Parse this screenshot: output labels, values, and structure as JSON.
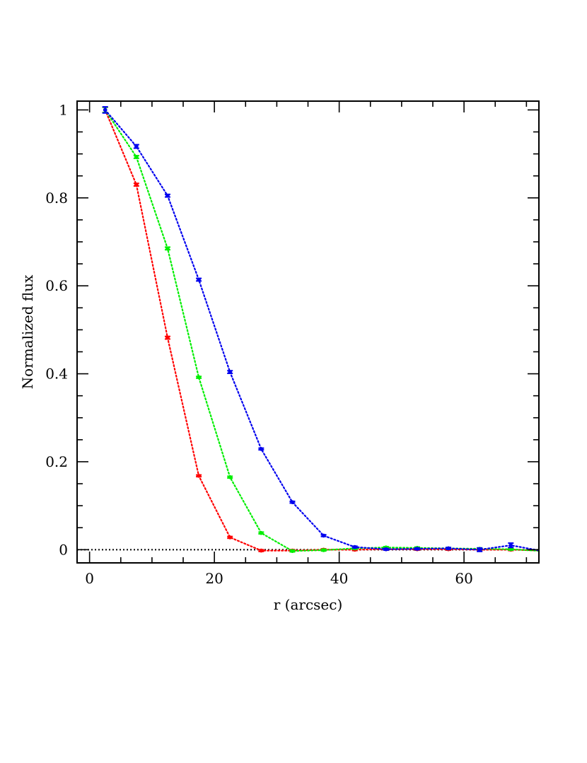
{
  "chart_data": {
    "type": "line",
    "title": "",
    "xlabel": "r (arcsec)",
    "ylabel": "Normalized flux",
    "xlim": [
      -2,
      72
    ],
    "ylim": [
      -0.03,
      1.02
    ],
    "x_major_ticks": [
      0,
      20,
      40,
      60
    ],
    "x_minor_step": 5,
    "y_major_ticks": [
      0,
      0.2,
      0.4,
      0.6,
      0.8,
      1
    ],
    "y_tick_labels": [
      "0",
      "0.2",
      "0.4",
      "0.6",
      "0.8",
      "1"
    ],
    "y_minor_step": 0.05,
    "grid": false,
    "legend": "none",
    "reference_line": {
      "y": 0,
      "style": "dotted",
      "color": "#000000"
    },
    "series": [
      {
        "color": "#ff0000",
        "x": [
          2.5,
          7.5,
          12.5,
          17.5,
          22.5,
          27.5,
          32.5,
          37.5,
          42.5,
          47.5,
          52.5,
          57.5,
          62.5,
          67.5,
          72.5
        ],
        "y": [
          1.0,
          0.83,
          0.482,
          0.168,
          0.028,
          -0.002,
          -0.002,
          0.0,
          0.0,
          0.001,
          0.001,
          0.001,
          0.0,
          0.0,
          -0.002
        ],
        "err": [
          0.006,
          0.003,
          0.003,
          0.002,
          0.002,
          0.002,
          0.002,
          0.002,
          0.002,
          0.002,
          0.002,
          0.002,
          0.002,
          0.002,
          0.002
        ]
      },
      {
        "color": "#00ee00",
        "x": [
          2.5,
          7.5,
          12.5,
          17.5,
          22.5,
          27.5,
          32.5,
          37.5,
          42.5,
          47.5,
          52.5,
          57.5,
          62.5,
          67.5,
          72.5
        ],
        "y": [
          1.0,
          0.893,
          0.685,
          0.392,
          0.165,
          0.038,
          -0.003,
          -0.001,
          0.003,
          0.005,
          0.004,
          0.003,
          0.002,
          0.001,
          -0.003
        ],
        "err": [
          0.006,
          0.003,
          0.003,
          0.002,
          0.002,
          0.002,
          0.002,
          0.002,
          0.002,
          0.002,
          0.002,
          0.002,
          0.002,
          0.002,
          0.002
        ]
      },
      {
        "color": "#0000ee",
        "x": [
          2.5,
          7.5,
          12.5,
          17.5,
          22.5,
          27.5,
          32.5,
          37.5,
          42.5,
          47.5,
          52.5,
          57.5,
          62.5,
          67.5,
          72.5
        ],
        "y": [
          1.0,
          0.917,
          0.805,
          0.614,
          0.404,
          0.229,
          0.108,
          0.032,
          0.006,
          0.001,
          0.002,
          0.003,
          0.0,
          0.01,
          -0.003
        ],
        "err": [
          0.007,
          0.004,
          0.003,
          0.003,
          0.003,
          0.002,
          0.002,
          0.002,
          0.002,
          0.002,
          0.002,
          0.002,
          0.004,
          0.005,
          0.002
        ]
      }
    ]
  }
}
